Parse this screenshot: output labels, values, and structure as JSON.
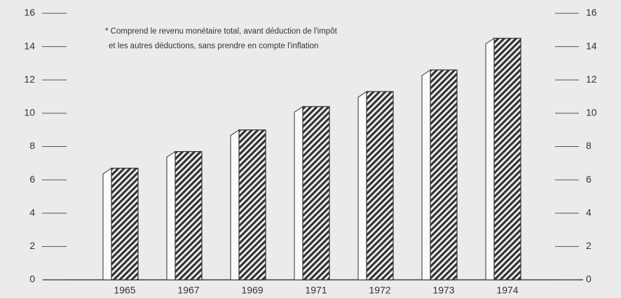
{
  "chart_data": {
    "type": "bar",
    "annotations": [
      "* Comprend le revenu monétaire total, avant déduction de l'impôt",
      "et les autres déductions, sans prendre en compte l'inflation"
    ],
    "categories": [
      "1965",
      "1967",
      "1969",
      "1971",
      "1972",
      "1973",
      "1974"
    ],
    "values": [
      6.7,
      7.7,
      9.0,
      10.4,
      11.3,
      12.6,
      14.5
    ],
    "color": "#333333",
    "ylim": [
      0,
      16
    ],
    "yticks": [
      0,
      2,
      4,
      6,
      8,
      10,
      12,
      14,
      16
    ],
    "y2lim": [
      0,
      16
    ],
    "y2ticks": [
      0,
      2,
      4,
      6,
      8,
      10,
      12,
      14,
      16
    ],
    "grid": false
  }
}
